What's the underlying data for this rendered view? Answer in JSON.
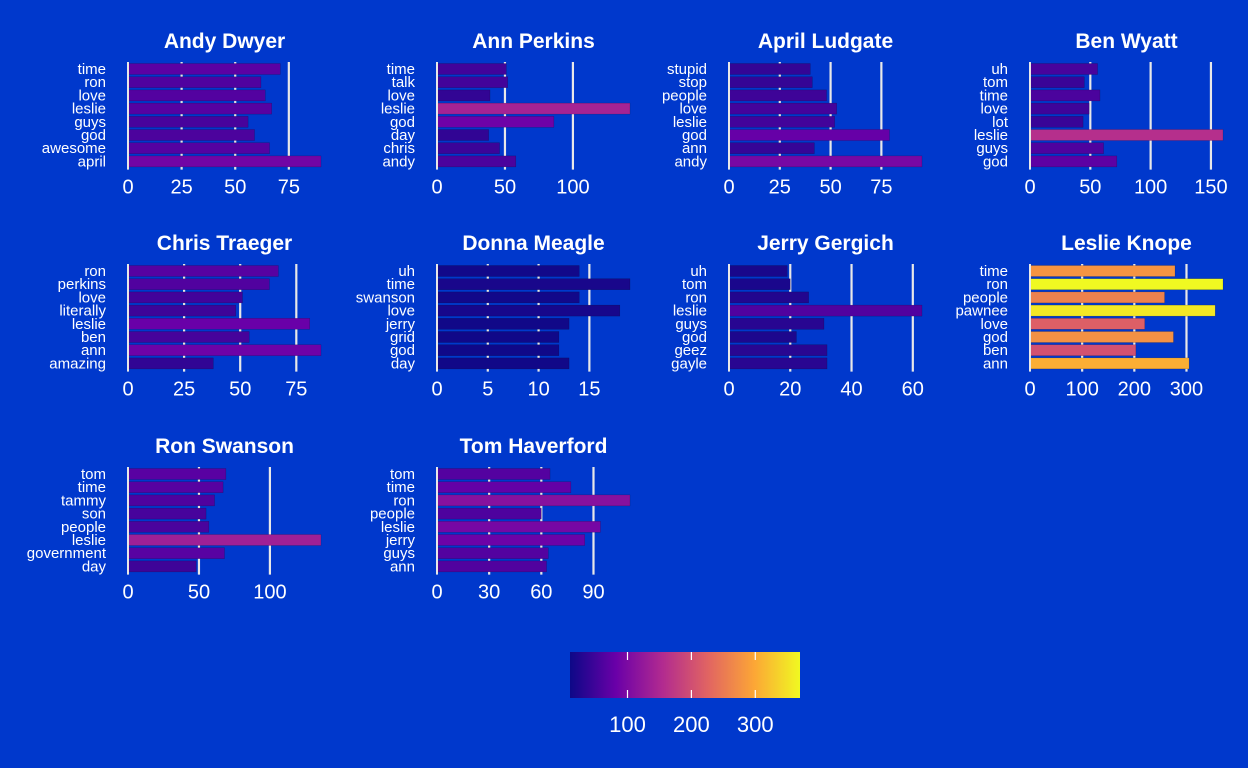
{
  "chart_data": [
    {
      "type": "bar",
      "title": "Andy Dwyer",
      "categories": [
        "time",
        "ron",
        "love",
        "leslie",
        "guys",
        "god",
        "awesome",
        "april"
      ],
      "values": [
        71,
        62,
        64,
        67,
        56,
        59,
        66,
        90
      ],
      "xticks": [
        0,
        25,
        50,
        75
      ],
      "xlim": [
        0,
        90
      ]
    },
    {
      "type": "bar",
      "title": "Ann Perkins",
      "categories": [
        "time",
        "talk",
        "love",
        "leslie",
        "god",
        "day",
        "chris",
        "andy"
      ],
      "values": [
        51,
        52,
        39,
        142,
        86,
        38,
        46,
        58
      ],
      "xticks": [
        0,
        50,
        100
      ],
      "xlim": [
        0,
        142
      ]
    },
    {
      "type": "bar",
      "title": "April Ludgate",
      "categories": [
        "stupid",
        "stop",
        "people",
        "love",
        "leslie",
        "god",
        "ann",
        "andy"
      ],
      "values": [
        40,
        41,
        48,
        53,
        52,
        79,
        42,
        95
      ],
      "xticks": [
        0,
        25,
        50,
        75
      ],
      "xlim": [
        0,
        95
      ]
    },
    {
      "type": "bar",
      "title": "Ben Wyatt",
      "categories": [
        "uh",
        "tom",
        "time",
        "love",
        "lot",
        "leslie",
        "guys",
        "god"
      ],
      "values": [
        56,
        45,
        58,
        49,
        44,
        160,
        61,
        72
      ],
      "xticks": [
        0,
        50,
        100,
        150
      ],
      "xlim": [
        0,
        160
      ]
    },
    {
      "type": "bar",
      "title": "Chris Traeger",
      "categories": [
        "ron",
        "perkins",
        "love",
        "literally",
        "leslie",
        "ben",
        "ann",
        "amazing"
      ],
      "values": [
        67,
        63,
        51,
        48,
        81,
        54,
        86,
        38
      ],
      "xticks": [
        0,
        25,
        50,
        75
      ],
      "xlim": [
        0,
        86
      ]
    },
    {
      "type": "bar",
      "title": "Donna Meagle",
      "categories": [
        "uh",
        "time",
        "swanson",
        "love",
        "jerry",
        "grid",
        "god",
        "day"
      ],
      "values": [
        14,
        19,
        14,
        18,
        13,
        12,
        12,
        13
      ],
      "xticks": [
        0,
        5,
        10,
        15
      ],
      "xlim": [
        0,
        19
      ]
    },
    {
      "type": "bar",
      "title": "Jerry Gergich",
      "categories": [
        "uh",
        "tom",
        "ron",
        "leslie",
        "guys",
        "god",
        "geez",
        "gayle"
      ],
      "values": [
        19,
        20,
        26,
        63,
        31,
        22,
        32,
        32
      ],
      "xticks": [
        0,
        20,
        40,
        60
      ],
      "xlim": [
        0,
        63
      ]
    },
    {
      "type": "bar",
      "title": "Leslie Knope",
      "categories": [
        "time",
        "ron",
        "people",
        "pawnee",
        "love",
        "god",
        "ben",
        "ann"
      ],
      "values": [
        278,
        370,
        258,
        355,
        220,
        275,
        203,
        305
      ],
      "xticks": [
        0,
        100,
        200,
        300
      ],
      "xlim": [
        0,
        370
      ]
    },
    {
      "type": "bar",
      "title": "Ron Swanson",
      "categories": [
        "tom",
        "time",
        "tammy",
        "son",
        "people",
        "leslie",
        "government",
        "day"
      ],
      "values": [
        69,
        67,
        61,
        55,
        57,
        136,
        68,
        48
      ],
      "xticks": [
        0,
        50,
        100
      ],
      "xlim": [
        0,
        136
      ]
    },
    {
      "type": "bar",
      "title": "Tom Haverford",
      "categories": [
        "tom",
        "time",
        "ron",
        "people",
        "leslie",
        "jerry",
        "guys",
        "ann"
      ],
      "values": [
        65,
        77,
        111,
        60,
        94,
        85,
        64,
        63
      ],
      "xticks": [
        0,
        30,
        60,
        90
      ],
      "xlim": [
        0,
        111
      ]
    }
  ],
  "colorbar": {
    "ticks": [
      100,
      200,
      300
    ],
    "range": [
      10,
      370
    ]
  },
  "colors": {
    "background": "#0038CC",
    "text": "#FFFFFF",
    "grid": "#E8E8E8",
    "palette": [
      "#0D0887",
      "#6A00A8",
      "#B12A90",
      "#E16462",
      "#FCA636",
      "#F0F921"
    ]
  }
}
